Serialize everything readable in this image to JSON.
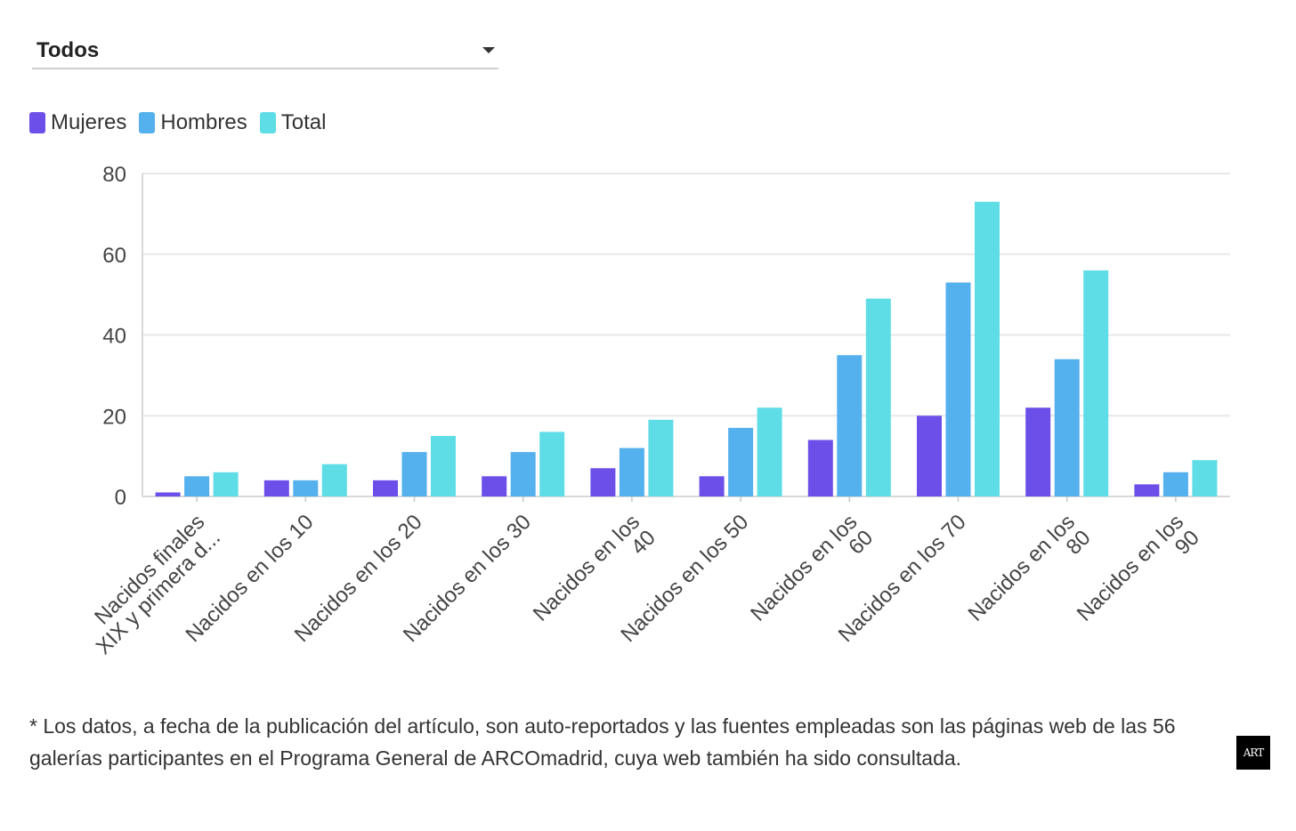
{
  "filter": {
    "selected": "Todos"
  },
  "legend": {
    "items": [
      {
        "label": "Mujeres",
        "color": "#6c4fe8"
      },
      {
        "label": "Hombres",
        "color": "#55b0ee"
      },
      {
        "label": "Total",
        "color": "#5fdde6"
      }
    ]
  },
  "chart_data": {
    "type": "bar",
    "categories": [
      [
        "Nacidos finales",
        "XIX y primera d..."
      ],
      [
        "Nacidos en los 10"
      ],
      [
        "Nacidos en los 20"
      ],
      [
        "Nacidos en los 30"
      ],
      [
        "Nacidos en los",
        "40"
      ],
      [
        "Nacidos en los 50"
      ],
      [
        "Nacidos en los",
        "60"
      ],
      [
        "Nacidos en los 70"
      ],
      [
        "Nacidos en los",
        "80"
      ],
      [
        "Nacidos en los",
        "90"
      ]
    ],
    "series": [
      {
        "name": "Mujeres",
        "color": "#6c4fe8",
        "values": [
          1,
          4,
          4,
          5,
          7,
          5,
          14,
          20,
          22,
          3
        ]
      },
      {
        "name": "Hombres",
        "color": "#55b0ee",
        "values": [
          5,
          4,
          11,
          11,
          12,
          17,
          35,
          53,
          34,
          6
        ]
      },
      {
        "name": "Total",
        "color": "#5fdde6",
        "values": [
          6,
          8,
          15,
          16,
          19,
          22,
          49,
          73,
          56,
          9
        ]
      }
    ],
    "yticks": [
      0,
      20,
      40,
      60,
      80
    ],
    "ylim": [
      0,
      80
    ],
    "title": "",
    "xlabel": "",
    "ylabel": ""
  },
  "footnote": "* Los datos, a fecha de la publicación del artículo, son auto-reportados y las fuentes empleadas son las páginas web de las 56 galerías participantes en el Programa General de ARCOmadrid, cuya web también ha sido consultada.",
  "logo": {
    "icon": "art-logo"
  }
}
